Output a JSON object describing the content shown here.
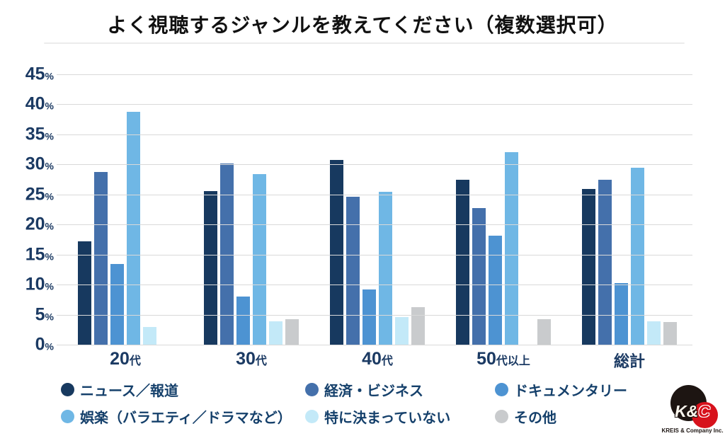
{
  "title": "よく視聴するジャンルを教えてください（複数選択可）",
  "chart_data": {
    "type": "bar",
    "categories": [
      "20代",
      "30代",
      "40代",
      "50代以上",
      "総計"
    ],
    "series": [
      {
        "name": "ニュース／報道",
        "color": "#17395f",
        "values": [
          17.2,
          25.6,
          30.7,
          27.5,
          25.9
        ]
      },
      {
        "name": "経済・ビジネス",
        "color": "#4470ab",
        "values": [
          28.7,
          30.2,
          24.6,
          22.7,
          27.5
        ]
      },
      {
        "name": "ドキュメンタリー",
        "color": "#4d93d2",
        "values": [
          13.4,
          8.0,
          9.2,
          18.2,
          10.2
        ]
      },
      {
        "name": "娯楽（バラエティ／ドラマなど）",
        "color": "#6fb7e5",
        "values": [
          38.7,
          28.4,
          25.5,
          32.0,
          29.5
        ]
      },
      {
        "name": "特に決まっていない",
        "color": "#c3e9f8",
        "values": [
          3.0,
          3.9,
          4.6,
          0,
          3.9
        ]
      },
      {
        "name": "その他",
        "color": "#c9cbcd",
        "values": [
          0,
          4.2,
          6.3,
          4.2,
          3.8
        ]
      }
    ],
    "ylim": [
      0,
      45
    ],
    "ytick_step": 5,
    "ytick_suffix": "%",
    "grid": true,
    "grid_color": "#d9d9d9",
    "legend_position": "bottom",
    "axis_label_color": "#1b3a63"
  },
  "logo": {
    "monogram_left": "K&",
    "monogram_right": "C",
    "company": "KREIS & Company Inc."
  }
}
